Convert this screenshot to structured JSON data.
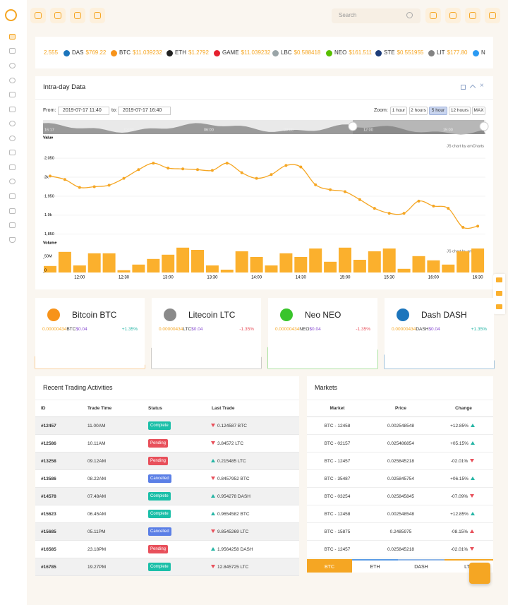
{
  "nav": {
    "search_placeholder": "Search"
  },
  "ticker": [
    {
      "price": "2.555"
    },
    {
      "symbol": "DAS",
      "price": "$769.22",
      "color": "#1c75bc"
    },
    {
      "symbol": "BTC",
      "price": "$11.039232",
      "color": "#f7931a"
    },
    {
      "symbol": "ETH",
      "price": "$1.2792",
      "color": "#222222"
    },
    {
      "symbol": "GAME",
      "price": "$11.039232",
      "color": "#e5202e"
    },
    {
      "symbol": "LBC",
      "price": "$0.588418",
      "color": "#9aa5a8"
    },
    {
      "symbol": "NEO",
      "price": "$161.511",
      "color": "#58bf00"
    },
    {
      "symbol": "STE",
      "price": "$0.551955",
      "color": "#1d3c78"
    },
    {
      "symbol": "LIT",
      "price": "$177.80",
      "color": "#838383"
    },
    {
      "symbol": "N",
      "color": "#2b9af3"
    }
  ],
  "intraday": {
    "title": "Intra-day Data",
    "from_label": "From:",
    "from": "2019-07-17 11:40",
    "to_label": "to:",
    "to": "2019-07-17 16:40",
    "zoom_label": "Zoom:",
    "zoom_options": [
      "1 hour",
      "2 hours",
      "5 hour",
      "12 hours",
      "MAX"
    ],
    "zoom_active": 2,
    "scrollbar_labels": [
      "16:17",
      "03:00",
      "06:00",
      "09:00",
      "12:00",
      "15:00"
    ],
    "credit": "JS chart by amCharts"
  },
  "chart_data": [
    {
      "type": "line",
      "y_label": "Value",
      "color": "#f5a623",
      "grid": true,
      "categories": [
        null,
        null,
        "12:00",
        null,
        null,
        "12:30",
        null,
        null,
        "13:00",
        null,
        null,
        "13:30",
        null,
        null,
        "14:00",
        null,
        null,
        "14:30",
        null,
        null,
        "15:00",
        null,
        null,
        "15:30",
        null,
        null,
        "16:00",
        null,
        null,
        "16:30"
      ],
      "values": [
        2003,
        1994,
        1973,
        1975,
        1979,
        1997,
        2020,
        2037,
        2024,
        2022,
        2020,
        2018,
        2037,
        2012,
        1997,
        2007,
        2031,
        2027,
        1980,
        1967,
        1962,
        1941,
        1918,
        1905,
        1905,
        1937,
        1924,
        1918,
        1868,
        1871
      ],
      "ylim": [
        1840,
        2095
      ],
      "yticks": [
        {
          "value": 2050,
          "label": "2,050"
        },
        {
          "value": 2000,
          "label": "2k"
        },
        {
          "value": 1950,
          "label": "1,950"
        },
        {
          "value": 1900,
          "label": "1.9k"
        },
        {
          "value": 1850,
          "label": "1,850"
        }
      ]
    },
    {
      "type": "bar",
      "y_label": "Volume",
      "color": "#fbb02d",
      "values": [
        23000000,
        73000000,
        25000000,
        68000000,
        68000000,
        8000000,
        28000000,
        48000000,
        63000000,
        88000000,
        80000000,
        25000000,
        10000000,
        75000000,
        55000000,
        25000000,
        68000000,
        55000000,
        85000000,
        38000000,
        88000000,
        45000000,
        75000000,
        85000000,
        13000000,
        58000000,
        43000000,
        28000000,
        75000000,
        85000000
      ],
      "ylim": [
        0,
        100000000
      ],
      "yticks": [
        0,
        {
          "value": 50000000,
          "label": "50M"
        }
      ]
    }
  ],
  "coins": [
    {
      "name": "Bitcoin BTC",
      "amount": "0.00000434",
      "unit": "BTC",
      "price": "$0.04",
      "change": "+1.35%",
      "change_color": "#26b5a5",
      "color": "#f7931a"
    },
    {
      "name": "Litecoin LTC",
      "amount": "0.00000434",
      "unit": "LTC",
      "price": "$0.04",
      "change": "-1.35%",
      "change_color": "#e8505b",
      "color": "#8a8a8a"
    },
    {
      "name": "Neo NEO",
      "amount": "0.00000434",
      "unit": "NEO",
      "price": "$0.04",
      "change": "-1.35%",
      "change_color": "#e8505b",
      "color": "#39c42b"
    },
    {
      "name": "Dash DASH",
      "amount": "0.00000434",
      "unit": "DASH",
      "price": "$0.04",
      "change": "+1.35%",
      "change_color": "#26b5a5",
      "color": "#1c75bc"
    }
  ],
  "trading": {
    "title": "Recent Trading Activities",
    "columns": [
      "ID",
      "Trade Time",
      "Status",
      "Last Trade"
    ],
    "rows": [
      {
        "id": "#12457",
        "time": "11.00AM",
        "status": "Complete",
        "status_color": "#1bbfa8",
        "trade": "0.124587 BTC",
        "direction": "down"
      },
      {
        "id": "#12586",
        "time": "10.11AM",
        "status": "Pending",
        "status_color": "#e8505b",
        "trade": "3.84572 LTC",
        "direction": "down"
      },
      {
        "id": "#13258",
        "time": "09.12AM",
        "status": "Pending",
        "status_color": "#e8505b",
        "trade": "0.215485 LTC",
        "direction": "up"
      },
      {
        "id": "#13586",
        "time": "08.22AM",
        "status": "Cancelled",
        "status_color": "#5b7fe6",
        "trade": "0.8457952 BTC",
        "direction": "down"
      },
      {
        "id": "#14578",
        "time": "07.48AM",
        "status": "Complete",
        "status_color": "#1bbfa8",
        "trade": "0.954278 DASH",
        "direction": "up"
      },
      {
        "id": "#15623",
        "time": "06.45AM",
        "status": "Complete",
        "status_color": "#1bbfa8",
        "trade": "0.9654582 BTC",
        "direction": "up"
      },
      {
        "id": "#15685",
        "time": "05.11PM",
        "status": "Cancelled",
        "status_color": "#5b7fe6",
        "trade": "9.8545269 LTC",
        "direction": "down"
      },
      {
        "id": "#16585",
        "time": "23.18PM",
        "status": "Pending",
        "status_color": "#e8505b",
        "trade": "1.9564258 DASH",
        "direction": "up"
      },
      {
        "id": "#16785",
        "time": "19.27PM",
        "status": "Complete",
        "status_color": "#1bbfa8",
        "trade": "12.845725 LTC",
        "direction": "down"
      }
    ]
  },
  "markets": {
    "title": "Markets",
    "columns": [
      "Market",
      "Price",
      "Change"
    ],
    "rows": [
      {
        "market": "BTC - 12458",
        "price": "0.002548548",
        "change": "+12.85%",
        "direction": "up",
        "arrow_color": "#26b5a5"
      },
      {
        "market": "BTC - 02157",
        "price": "0.025486854",
        "change": "+05.15%",
        "direction": "up",
        "arrow_color": "#26b5a5"
      },
      {
        "market": "BTC - 12457",
        "price": "0.025845218",
        "change": "-02.01%",
        "direction": "down",
        "arrow_color": "#e8505b"
      },
      {
        "market": "BTC - 35487",
        "price": "0.025845754",
        "change": "+06.15%",
        "direction": "up",
        "arrow_color": "#26b5a5"
      },
      {
        "market": "BTC - 03254",
        "price": "0.025845845",
        "change": "-07.09%",
        "direction": "down",
        "arrow_color": "#e8505b"
      },
      {
        "market": "BTC - 12458",
        "price": "0.002548548",
        "change": "+12.85%",
        "direction": "up",
        "arrow_color": "#26b5a5"
      },
      {
        "market": "BTC - 15875",
        "price": "0.2485975",
        "change": "-08.15%",
        "direction": "up",
        "arrow_color": "#e8505b"
      },
      {
        "market": "BTC - 12457",
        "price": "0.025845218",
        "change": "-02.01%",
        "direction": "down",
        "arrow_color": "#e8505b"
      }
    ],
    "tabs": [
      "BTC",
      "ETH",
      "DASH",
      "LTC"
    ],
    "active_tab": 0
  }
}
